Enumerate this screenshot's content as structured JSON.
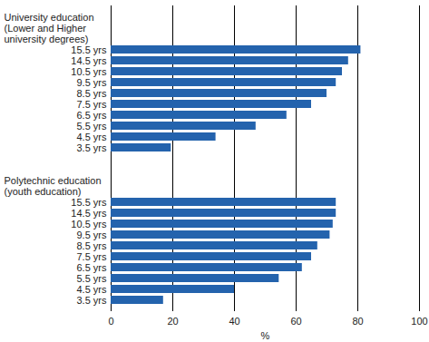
{
  "chart_data": {
    "type": "bar",
    "orientation": "horizontal",
    "categories": [
      "15.5 yrs",
      "14.5 yrs",
      "10.5 yrs",
      "9.5 yrs",
      "8.5 yrs",
      "7.5 yrs",
      "6.5 yrs",
      "5.5 yrs",
      "4.5 yrs",
      "3.5 yrs"
    ],
    "series": [
      {
        "name": "University education (Lower and Higher university degrees)",
        "color": "#2463ad",
        "values": [
          81,
          77,
          75,
          73,
          70,
          65,
          57,
          47,
          34,
          19.5
        ]
      },
      {
        "name": "Polytechnic education (youth education)",
        "color": "#2463ad",
        "values": [
          73,
          73,
          72,
          71,
          67,
          65,
          62,
          54.5,
          40,
          17
        ]
      }
    ],
    "x_label": "%",
    "xlim": [
      0,
      100
    ],
    "xticks": [
      0,
      20,
      40,
      60,
      80,
      100
    ],
    "grid": true
  }
}
